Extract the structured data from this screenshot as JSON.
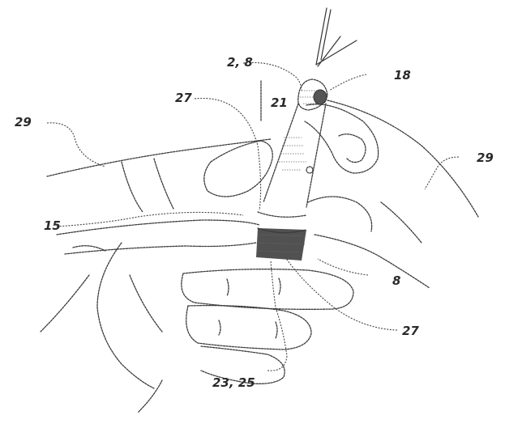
{
  "figure": {
    "labels": {
      "l_2_8": "2, 8",
      "l_18": "18",
      "l_27_top": "27",
      "l_21": "21",
      "l_29_left": "29",
      "l_29_right": "29",
      "l_15": "15",
      "l_8": "8",
      "l_27_bottom": "27",
      "l_23_25": "23, 25"
    },
    "icons": [
      "action-arrow-icon"
    ]
  }
}
